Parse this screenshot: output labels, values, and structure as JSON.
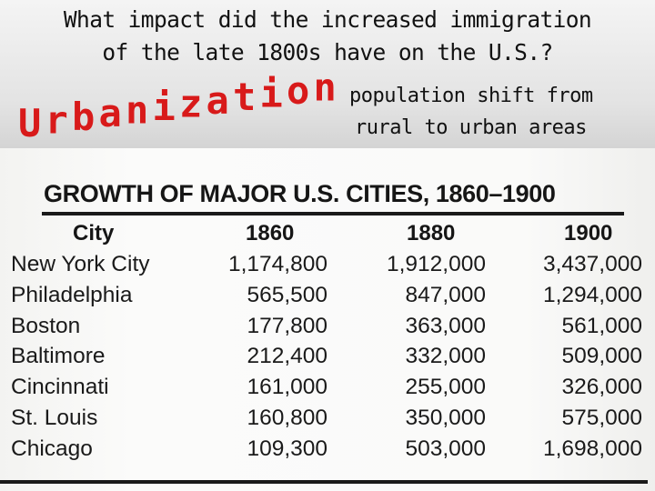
{
  "slide": {
    "question": [
      "What impact did the increased immigration",
      "of the late 1800s have on the U.S.?"
    ],
    "keyword": "Urbanization",
    "definition": [
      "population shift from",
      "rural to urban areas"
    ],
    "keyword_color": "#d81a1a"
  },
  "table": {
    "title": "GROWTH OF MAJOR U.S. CITIES, 1860–1900",
    "headers": [
      "City",
      "1860",
      "1880",
      "1900"
    ],
    "rows": [
      [
        "New York City",
        "1,174,800",
        "1,912,000",
        "3,437,000"
      ],
      [
        "Philadelphia",
        "565,500",
        "847,000",
        "1,294,000"
      ],
      [
        "Boston",
        "177,800",
        "363,000",
        "561,000"
      ],
      [
        "Baltimore",
        "212,400",
        "332,000",
        "509,000"
      ],
      [
        "Cincinnati",
        "161,000",
        "255,000",
        "326,000"
      ],
      [
        "St. Louis",
        "160,800",
        "350,000",
        "575,000"
      ],
      [
        "Chicago",
        "109,300",
        "503,000",
        "1,698,000"
      ]
    ]
  }
}
